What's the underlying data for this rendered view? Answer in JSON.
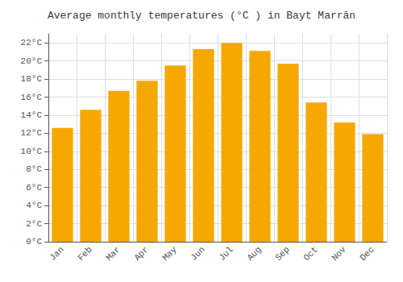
{
  "chart_data": {
    "type": "bar",
    "title": "Average monthly temperatures (°C ) in Bayt Marrān",
    "categories": [
      "Jan",
      "Feb",
      "Mar",
      "Apr",
      "May",
      "Jun",
      "Jul",
      "Aug",
      "Sep",
      "Oct",
      "Nov",
      "Dec"
    ],
    "values": [
      12.6,
      14.6,
      16.7,
      17.8,
      19.5,
      21.3,
      22.0,
      21.1,
      19.7,
      15.4,
      13.2,
      11.9
    ],
    "color": "#F5A800",
    "ylim": [
      0,
      23
    ],
    "yticks": [
      {
        "value": 0,
        "label": "0°C"
      },
      {
        "value": 2,
        "label": "2°C"
      },
      {
        "value": 4,
        "label": "4°C"
      },
      {
        "value": 6,
        "label": "6°C"
      },
      {
        "value": 8,
        "label": "8°C"
      },
      {
        "value": 10,
        "label": "10°C"
      },
      {
        "value": 12,
        "label": "12°C"
      },
      {
        "value": 14,
        "label": "14°C"
      },
      {
        "value": 16,
        "label": "16°C"
      },
      {
        "value": 18,
        "label": "18°C"
      },
      {
        "value": 20,
        "label": "20°C"
      },
      {
        "value": 22,
        "label": "22°C"
      }
    ],
    "grid": true
  }
}
